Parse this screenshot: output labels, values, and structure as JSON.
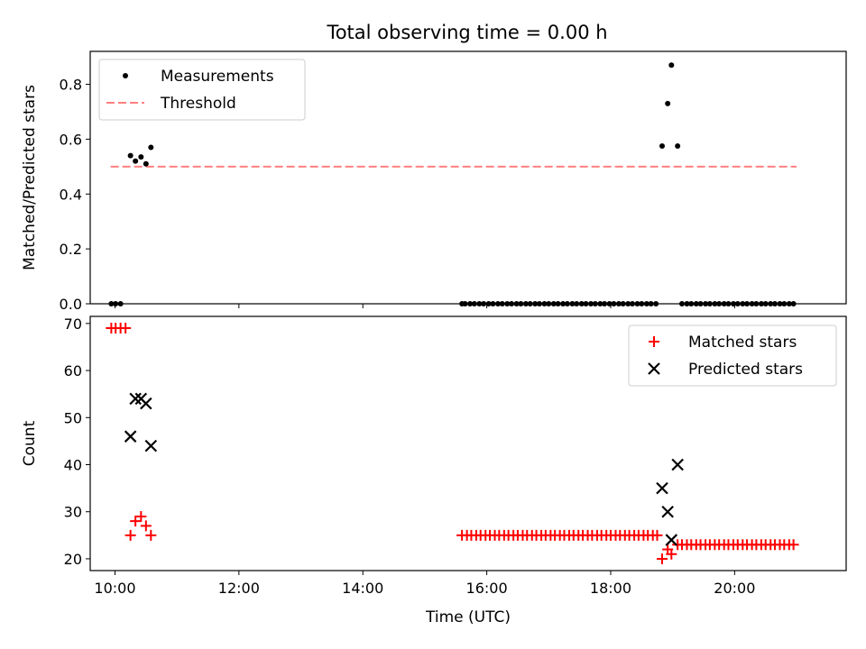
{
  "title": "Total observing time = 0.00 h",
  "chart_data": [
    {
      "type": "scatter",
      "ylabel": "Matched/Predicted stars",
      "xlim": [
        9.6,
        21.8
      ],
      "ylim": [
        0,
        0.92
      ],
      "yticks": [
        0.0,
        0.2,
        0.4,
        0.6,
        0.8
      ],
      "legend": {
        "position": "upper left",
        "entries": [
          "Measurements",
          "Threshold"
        ]
      },
      "threshold": {
        "name": "Threshold",
        "y": 0.5,
        "x_range": [
          9.93,
          21.0
        ],
        "color": "#ff8080",
        "style": "dashed"
      },
      "series": [
        {
          "name": "Measurements",
          "marker": "dot",
          "color": "#000000",
          "points": [
            [
              9.94,
              0.0
            ],
            [
              10.01,
              0.0
            ],
            [
              10.09,
              0.0
            ],
            [
              10.25,
              0.54
            ],
            [
              10.33,
              0.52
            ],
            [
              10.42,
              0.535
            ],
            [
              10.5,
              0.51
            ],
            [
              10.58,
              0.57
            ],
            [
              15.6,
              0.0
            ],
            [
              15.65,
              0.0
            ],
            [
              15.73,
              0.0
            ],
            [
              15.8,
              0.0
            ],
            [
              15.88,
              0.0
            ],
            [
              15.95,
              0.0
            ],
            [
              16.03,
              0.0
            ],
            [
              16.1,
              0.0
            ],
            [
              16.18,
              0.0
            ],
            [
              16.25,
              0.0
            ],
            [
              16.33,
              0.0
            ],
            [
              16.4,
              0.0
            ],
            [
              16.48,
              0.0
            ],
            [
              16.55,
              0.0
            ],
            [
              16.63,
              0.0
            ],
            [
              16.7,
              0.0
            ],
            [
              16.78,
              0.0
            ],
            [
              16.85,
              0.0
            ],
            [
              16.93,
              0.0
            ],
            [
              17.0,
              0.0
            ],
            [
              17.08,
              0.0
            ],
            [
              17.15,
              0.0
            ],
            [
              17.23,
              0.0
            ],
            [
              17.3,
              0.0
            ],
            [
              17.38,
              0.0
            ],
            [
              17.45,
              0.0
            ],
            [
              17.53,
              0.0
            ],
            [
              17.6,
              0.0
            ],
            [
              17.68,
              0.0
            ],
            [
              17.75,
              0.0
            ],
            [
              17.83,
              0.0
            ],
            [
              17.9,
              0.0
            ],
            [
              17.98,
              0.0
            ],
            [
              18.05,
              0.0
            ],
            [
              18.13,
              0.0
            ],
            [
              18.2,
              0.0
            ],
            [
              18.28,
              0.0
            ],
            [
              18.35,
              0.0
            ],
            [
              18.43,
              0.0
            ],
            [
              18.5,
              0.0
            ],
            [
              18.58,
              0.0
            ],
            [
              18.65,
              0.0
            ],
            [
              18.73,
              0.0
            ],
            [
              18.83,
              0.575
            ],
            [
              18.92,
              0.73
            ],
            [
              18.98,
              0.87
            ],
            [
              19.08,
              0.575
            ],
            [
              19.15,
              0.0
            ],
            [
              19.23,
              0.0
            ],
            [
              19.3,
              0.0
            ],
            [
              19.38,
              0.0
            ],
            [
              19.45,
              0.0
            ],
            [
              19.53,
              0.0
            ],
            [
              19.6,
              0.0
            ],
            [
              19.68,
              0.0
            ],
            [
              19.75,
              0.0
            ],
            [
              19.83,
              0.0
            ],
            [
              19.9,
              0.0
            ],
            [
              19.98,
              0.0
            ],
            [
              20.05,
              0.0
            ],
            [
              20.13,
              0.0
            ],
            [
              20.2,
              0.0
            ],
            [
              20.28,
              0.0
            ],
            [
              20.35,
              0.0
            ],
            [
              20.43,
              0.0
            ],
            [
              20.5,
              0.0
            ],
            [
              20.58,
              0.0
            ],
            [
              20.65,
              0.0
            ],
            [
              20.73,
              0.0
            ],
            [
              20.8,
              0.0
            ],
            [
              20.88,
              0.0
            ],
            [
              20.95,
              0.0
            ]
          ]
        }
      ]
    },
    {
      "type": "scatter",
      "xlabel": "Time (UTC)",
      "ylabel": "Count",
      "xlim": [
        9.6,
        21.8
      ],
      "ylim": [
        17.5,
        71.5
      ],
      "yticks": [
        20,
        30,
        40,
        50,
        60,
        70
      ],
      "xticks": [
        "10:00",
        "12:00",
        "14:00",
        "16:00",
        "18:00",
        "20:00"
      ],
      "xtick_values": [
        10,
        12,
        14,
        16,
        18,
        20
      ],
      "legend": {
        "position": "upper right",
        "entries": [
          "Matched stars",
          "Predicted stars"
        ]
      },
      "series": [
        {
          "name": "Matched stars",
          "marker": "plus",
          "color": "#ff0000",
          "points": [
            [
              9.94,
              69
            ],
            [
              10.01,
              69
            ],
            [
              10.09,
              69
            ],
            [
              10.17,
              69
            ],
            [
              10.25,
              25
            ],
            [
              10.33,
              28
            ],
            [
              10.42,
              29
            ],
            [
              10.5,
              27
            ],
            [
              10.58,
              25
            ],
            [
              15.6,
              25
            ],
            [
              15.68,
              25
            ],
            [
              15.75,
              25
            ],
            [
              15.83,
              25
            ],
            [
              15.9,
              25
            ],
            [
              15.98,
              25
            ],
            [
              16.05,
              25
            ],
            [
              16.13,
              25
            ],
            [
              16.2,
              25
            ],
            [
              16.28,
              25
            ],
            [
              16.35,
              25
            ],
            [
              16.43,
              25
            ],
            [
              16.5,
              25
            ],
            [
              16.58,
              25
            ],
            [
              16.65,
              25
            ],
            [
              16.73,
              25
            ],
            [
              16.8,
              25
            ],
            [
              16.88,
              25
            ],
            [
              16.95,
              25
            ],
            [
              17.03,
              25
            ],
            [
              17.1,
              25
            ],
            [
              17.18,
              25
            ],
            [
              17.25,
              25
            ],
            [
              17.33,
              25
            ],
            [
              17.4,
              25
            ],
            [
              17.48,
              25
            ],
            [
              17.55,
              25
            ],
            [
              17.63,
              25
            ],
            [
              17.7,
              25
            ],
            [
              17.78,
              25
            ],
            [
              17.85,
              25
            ],
            [
              17.93,
              25
            ],
            [
              18.0,
              25
            ],
            [
              18.08,
              25
            ],
            [
              18.15,
              25
            ],
            [
              18.23,
              25
            ],
            [
              18.3,
              25
            ],
            [
              18.38,
              25
            ],
            [
              18.45,
              25
            ],
            [
              18.53,
              25
            ],
            [
              18.6,
              25
            ],
            [
              18.68,
              25
            ],
            [
              18.75,
              25
            ],
            [
              18.83,
              20
            ],
            [
              18.92,
              22
            ],
            [
              18.98,
              21
            ],
            [
              19.08,
              23
            ],
            [
              19.15,
              23
            ],
            [
              19.23,
              23
            ],
            [
              19.3,
              23
            ],
            [
              19.38,
              23
            ],
            [
              19.45,
              23
            ],
            [
              19.53,
              23
            ],
            [
              19.6,
              23
            ],
            [
              19.68,
              23
            ],
            [
              19.75,
              23
            ],
            [
              19.83,
              23
            ],
            [
              19.9,
              23
            ],
            [
              19.98,
              23
            ],
            [
              20.05,
              23
            ],
            [
              20.13,
              23
            ],
            [
              20.2,
              23
            ],
            [
              20.28,
              23
            ],
            [
              20.35,
              23
            ],
            [
              20.43,
              23
            ],
            [
              20.5,
              23
            ],
            [
              20.58,
              23
            ],
            [
              20.65,
              23
            ],
            [
              20.73,
              23
            ],
            [
              20.8,
              23
            ],
            [
              20.88,
              23
            ],
            [
              20.95,
              23
            ]
          ]
        },
        {
          "name": "Predicted stars",
          "marker": "x",
          "color": "#000000",
          "points": [
            [
              10.25,
              46
            ],
            [
              10.33,
              54
            ],
            [
              10.42,
              54
            ],
            [
              10.5,
              53
            ],
            [
              10.58,
              44
            ],
            [
              18.83,
              35
            ],
            [
              18.92,
              30
            ],
            [
              18.98,
              24
            ],
            [
              19.08,
              40
            ]
          ]
        }
      ]
    }
  ]
}
